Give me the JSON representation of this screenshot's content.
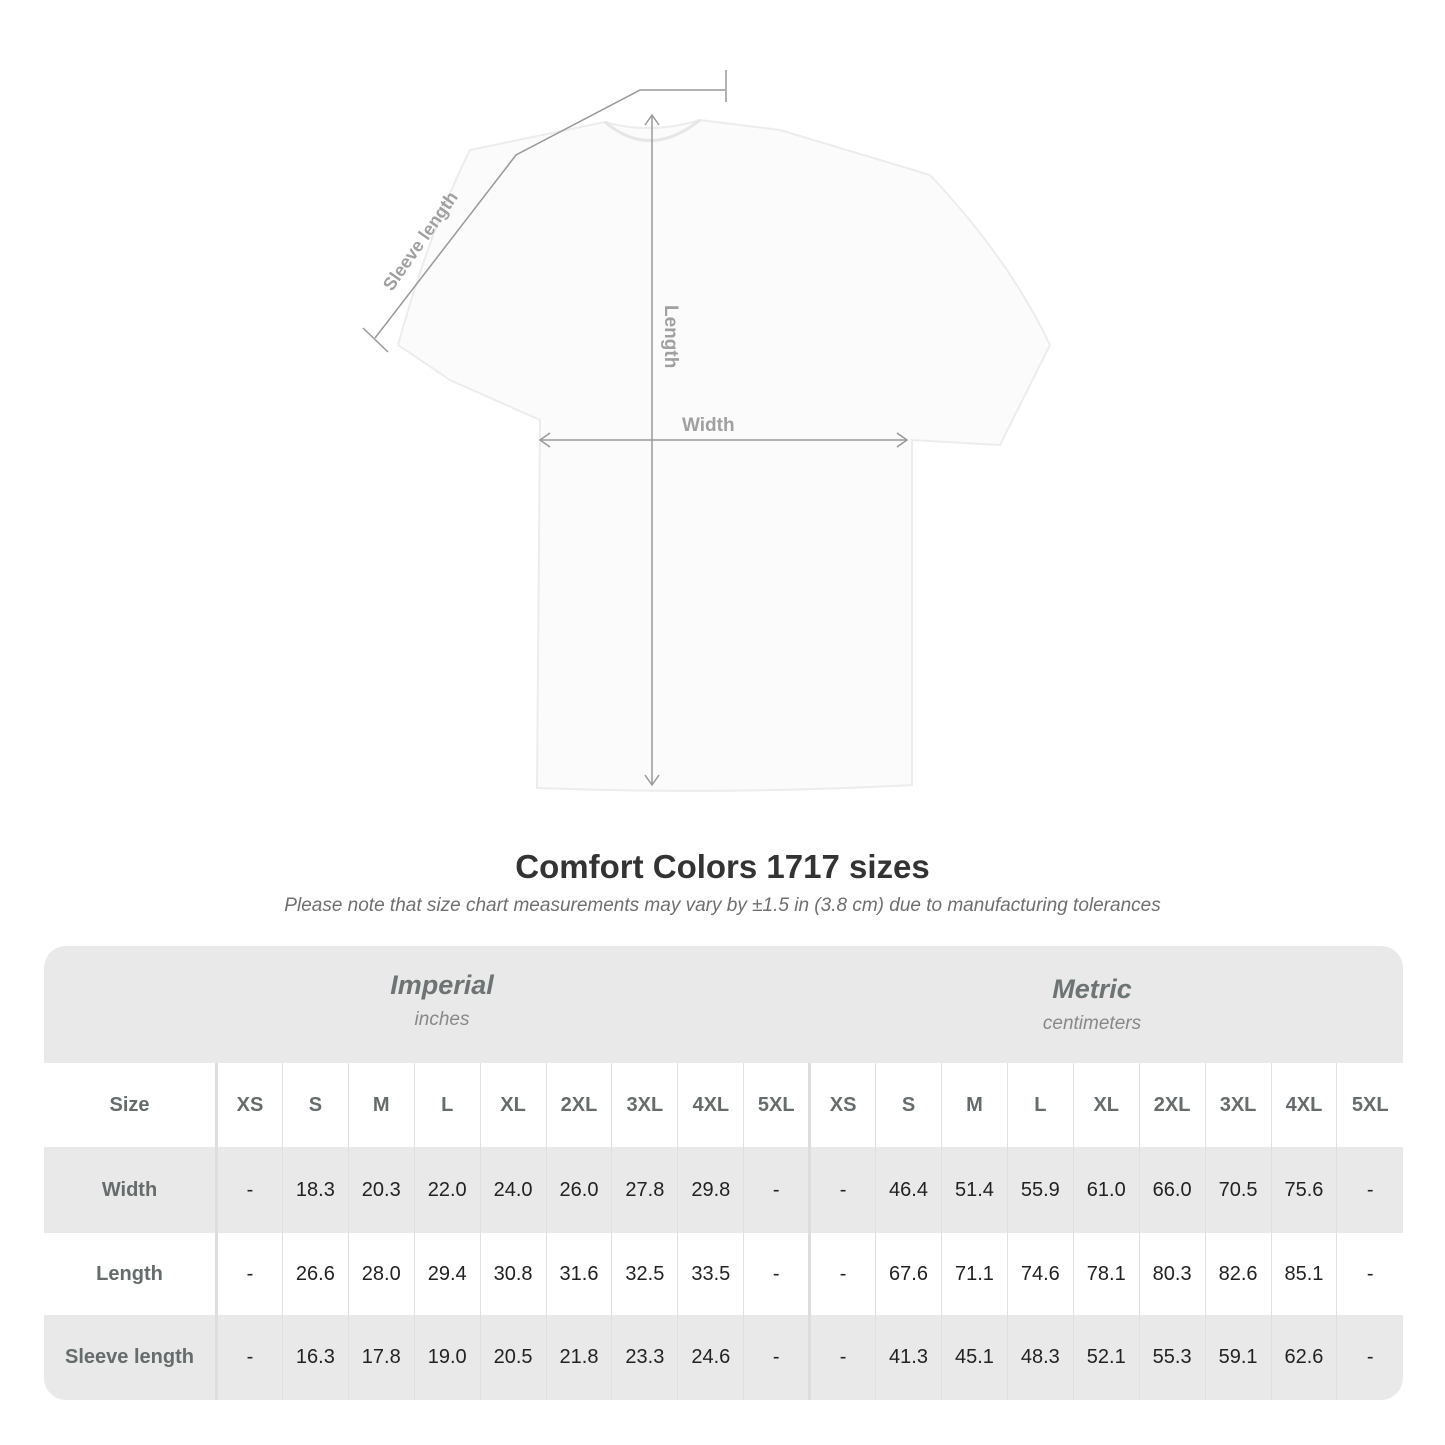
{
  "diagram": {
    "sleeve_label": "Sleeve length",
    "length_label": "Length",
    "width_label": "Width"
  },
  "title": "Comfort Colors 1717 sizes",
  "note": "Please note that size chart measurements may vary by ±1.5 in (3.8 cm) due to manufacturing tolerances",
  "table": {
    "imperial": {
      "heading": "Imperial",
      "unit": "inches"
    },
    "metric": {
      "heading": "Metric",
      "unit": "centimeters"
    },
    "size_label": "Size",
    "sizes": [
      "XS",
      "S",
      "M",
      "L",
      "XL",
      "2XL",
      "3XL",
      "4XL",
      "5XL"
    ],
    "rows": [
      {
        "label": "Width",
        "imperial": [
          "-",
          "18.3",
          "20.3",
          "22.0",
          "24.0",
          "26.0",
          "27.8",
          "29.8",
          "-"
        ],
        "metric": [
          "-",
          "46.4",
          "51.4",
          "55.9",
          "61.0",
          "66.0",
          "70.5",
          "75.6",
          "-"
        ]
      },
      {
        "label": "Length",
        "imperial": [
          "-",
          "26.6",
          "28.0",
          "29.4",
          "30.8",
          "31.6",
          "32.5",
          "33.5",
          "-"
        ],
        "metric": [
          "-",
          "67.6",
          "71.1",
          "74.6",
          "78.1",
          "80.3",
          "82.6",
          "85.1",
          "-"
        ]
      },
      {
        "label": "Sleeve length",
        "imperial": [
          "-",
          "16.3",
          "17.8",
          "19.0",
          "20.5",
          "21.8",
          "23.3",
          "24.6",
          "-"
        ],
        "metric": [
          "-",
          "41.3",
          "45.1",
          "48.3",
          "52.1",
          "55.3",
          "59.1",
          "62.6",
          "-"
        ]
      }
    ]
  }
}
